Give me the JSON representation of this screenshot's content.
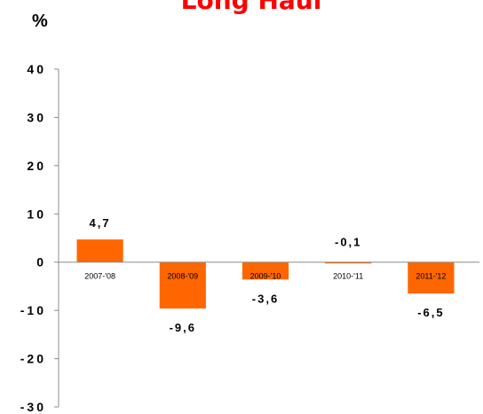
{
  "chart_data": {
    "type": "bar",
    "title": "Long Haul",
    "ylabel": "%",
    "xlabel": "",
    "categories": [
      "2007-'08",
      "2008-'09",
      "2009-'10",
      "2010-'11",
      "2011-'12"
    ],
    "values": [
      4.7,
      -9.6,
      -3.6,
      -0.1,
      -6.5
    ],
    "data_labels": [
      "4,7",
      "-9,6",
      "-3,6",
      "-0,1",
      "-6,5"
    ],
    "ylim": [
      -30,
      40
    ],
    "yticks": [
      40,
      30,
      20,
      10,
      0,
      -10,
      -20,
      -30
    ],
    "ytick_labels": [
      "40",
      "30",
      "20",
      "10",
      "0",
      "-10",
      "-20",
      "-30"
    ],
    "grid": false,
    "legend": "none",
    "bar_color": "#ff6600",
    "title_color": "#ff0000"
  }
}
